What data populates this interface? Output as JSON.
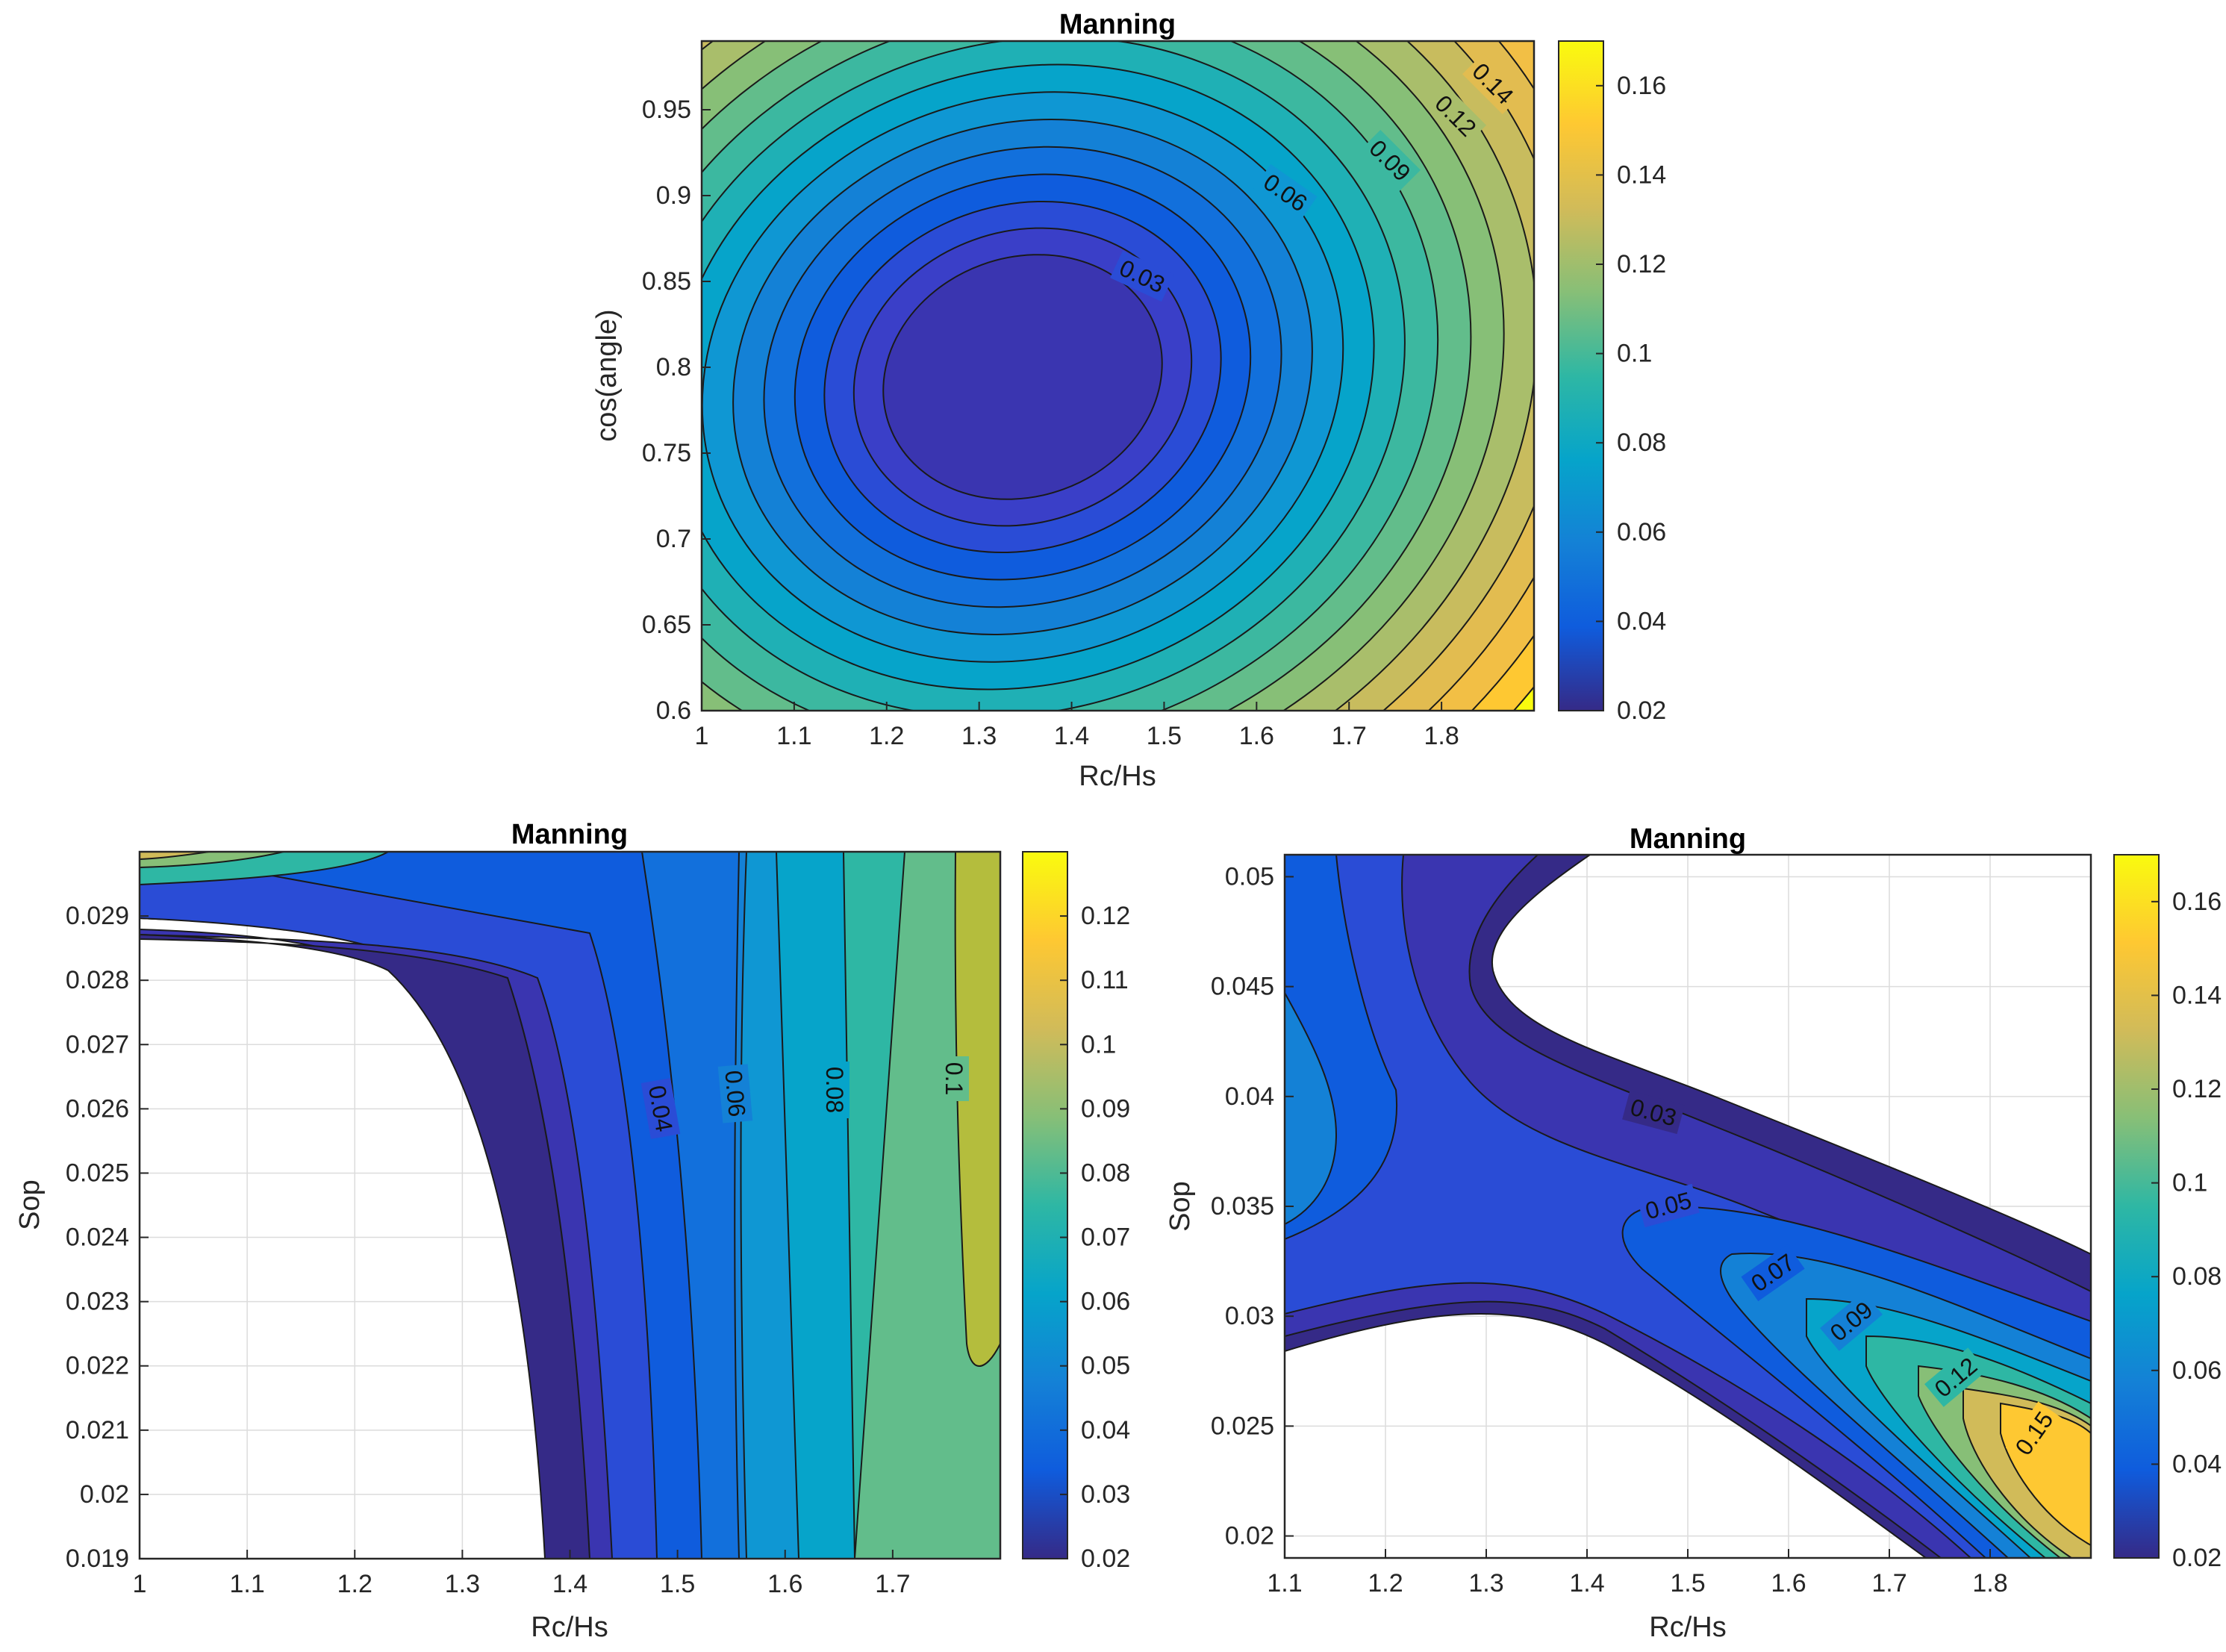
{
  "colormap": "parula",
  "chart_data": [
    {
      "type": "contour",
      "title": "Manning",
      "xlabel": "Rc/Hs",
      "ylabel": "cos(angle)",
      "xlim": [
        1,
        1.9
      ],
      "ylim": [
        0.6,
        0.99
      ],
      "xticks": [
        "1",
        "1.1",
        "1.2",
        "1.3",
        "1.4",
        "1.5",
        "1.6",
        "1.7",
        "1.8"
      ],
      "yticks": [
        "0.6",
        "0.65",
        "0.7",
        "0.75",
        "0.8",
        "0.85",
        "0.9",
        "0.95"
      ],
      "colorbar": {
        "range": [
          0.02,
          0.17
        ],
        "ticks": [
          "0.02",
          "0.04",
          "0.06",
          "0.08",
          "0.1",
          "0.12",
          "0.14",
          "0.16"
        ]
      },
      "contour_labels": [
        "0.03",
        "0.06",
        "0.09",
        "0.12",
        "0.14"
      ],
      "grid": false
    },
    {
      "type": "contour",
      "title": "Manning",
      "xlabel": "Rc/Hs",
      "ylabel": "Sop",
      "xlim": [
        1,
        1.8
      ],
      "ylim": [
        0.019,
        0.03
      ],
      "xticks": [
        "1",
        "1.1",
        "1.2",
        "1.3",
        "1.4",
        "1.5",
        "1.6",
        "1.7"
      ],
      "yticks": [
        "0.019",
        "0.02",
        "0.021",
        "0.022",
        "0.023",
        "0.024",
        "0.025",
        "0.026",
        "0.027",
        "0.028",
        "0.029"
      ],
      "colorbar": {
        "range": [
          0.02,
          0.13
        ],
        "ticks": [
          "0.02",
          "0.03",
          "0.04",
          "0.05",
          "0.06",
          "0.07",
          "0.08",
          "0.09",
          "0.1",
          "0.11",
          "0.12"
        ]
      },
      "contour_labels": [
        "0.04",
        "0.06",
        "0.08",
        "0.1"
      ],
      "grid": true
    },
    {
      "type": "contour",
      "title": "Manning",
      "xlabel": "Rc/Hs",
      "ylabel": "Sop",
      "xlim": [
        1.1,
        1.9
      ],
      "ylim": [
        0.019,
        0.051
      ],
      "xticks": [
        "1.1",
        "1.2",
        "1.3",
        "1.4",
        "1.5",
        "1.6",
        "1.7",
        "1.8"
      ],
      "yticks": [
        "0.02",
        "0.025",
        "0.03",
        "0.035",
        "0.04",
        "0.045",
        "0.05"
      ],
      "colorbar": {
        "range": [
          0.02,
          0.17
        ],
        "ticks": [
          "0.02",
          "0.04",
          "0.06",
          "0.08",
          "0.1",
          "0.12",
          "0.14",
          "0.16"
        ]
      },
      "contour_labels": [
        "0.03",
        "0.05",
        "0.07",
        "0.09",
        "0.12",
        "0.15"
      ],
      "grid": true
    }
  ]
}
